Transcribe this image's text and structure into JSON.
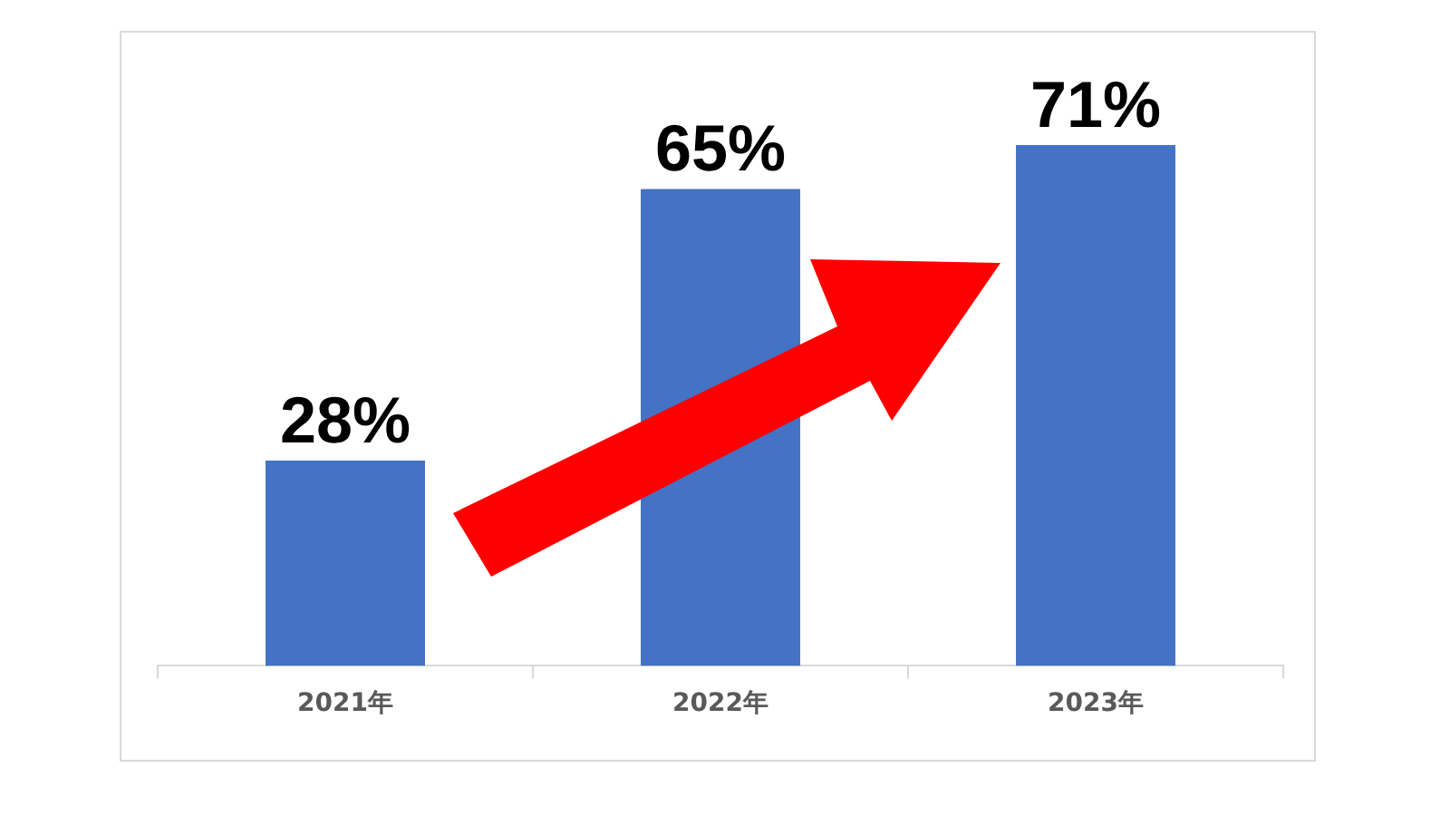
{
  "chart_data": {
    "type": "bar",
    "categories": [
      "2021年",
      "2022年",
      "2023年"
    ],
    "values": [
      28,
      65,
      71
    ],
    "color": "#4472c4",
    "value_labels": [
      "28%",
      "65%",
      "71%"
    ],
    "grid": false,
    "legend": false
  }
}
